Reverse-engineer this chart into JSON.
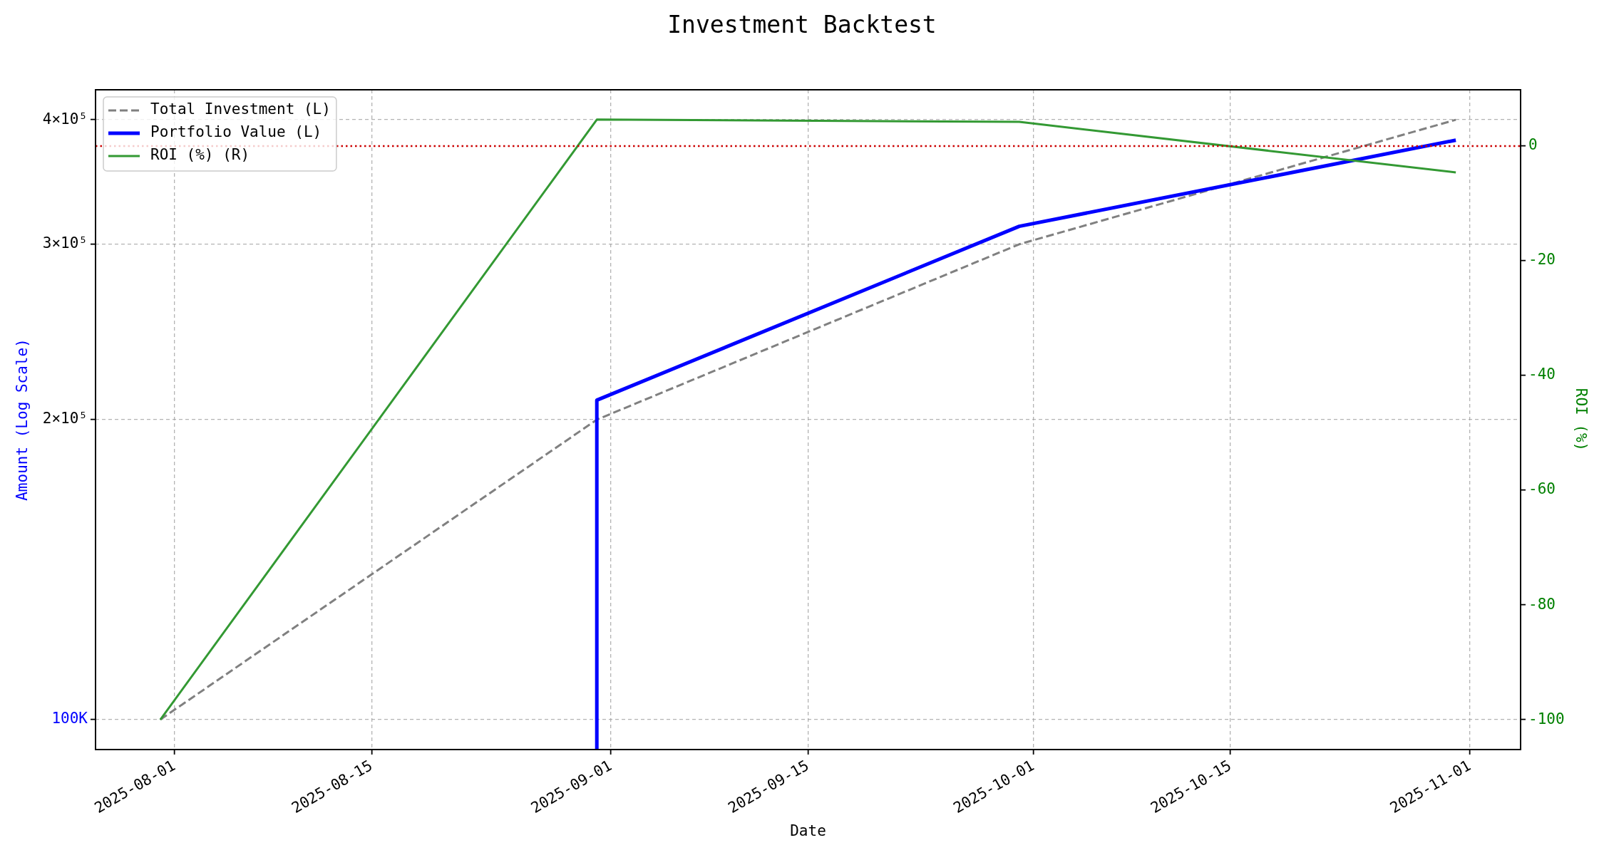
{
  "chart_data": {
    "type": "line",
    "title": "Investment Backtest",
    "xlabel": "Date",
    "ylabel": "Amount (Log Scale)",
    "y2label": "ROI (%)",
    "x": [
      "2025-07-31",
      "2025-08-31",
      "2025-09-30",
      "2025-10-31"
    ],
    "series": [
      {
        "name": "Total Investment (L)",
        "color": "#808080",
        "line_style": "dashed",
        "values": [
          100000,
          200000,
          300000,
          400000
        ]
      },
      {
        "name": "Portfolio Value (L)",
        "color": "#0000ff",
        "x": [
          "2025-08-31",
          "2025-08-31",
          "2025-09-30",
          "2025-10-31"
        ],
        "values": [
          93300,
          209200,
          312700,
          381600
        ]
      },
      {
        "name": "ROI (%) (R)",
        "color": "#339933",
        "axis": "y2",
        "values": [
          -100,
          4.6,
          4.2,
          -4.6
        ]
      }
    ],
    "xlim": [
      "2025-07-26T09:36",
      "2025-11-04T14:24"
    ],
    "xticks": [
      "2025-08-01",
      "2025-08-15",
      "2025-09-01",
      "2025-09-15",
      "2025-10-01",
      "2025-10-15",
      "2025-11-01"
    ],
    "ylim": [
      93300,
      428700
    ],
    "yticks": [
      {
        "value": 100000,
        "label": "100K"
      },
      {
        "value": 200000,
        "label": "2×10⁵"
      },
      {
        "value": 300000,
        "label": "3×10⁵"
      },
      {
        "value": 400000,
        "label": "4×10⁵"
      }
    ],
    "y2lim": [
      -105.2,
      9.8
    ],
    "y2ticks": [
      -100,
      -80,
      -60,
      -40,
      -20,
      0
    ],
    "ref_lines": [
      {
        "axis": "y2",
        "value": 0,
        "color": "#cc0000",
        "line_style": "dotted"
      }
    ],
    "log": "y",
    "grid": true,
    "legend": "top left",
    "line_style": "solid"
  }
}
